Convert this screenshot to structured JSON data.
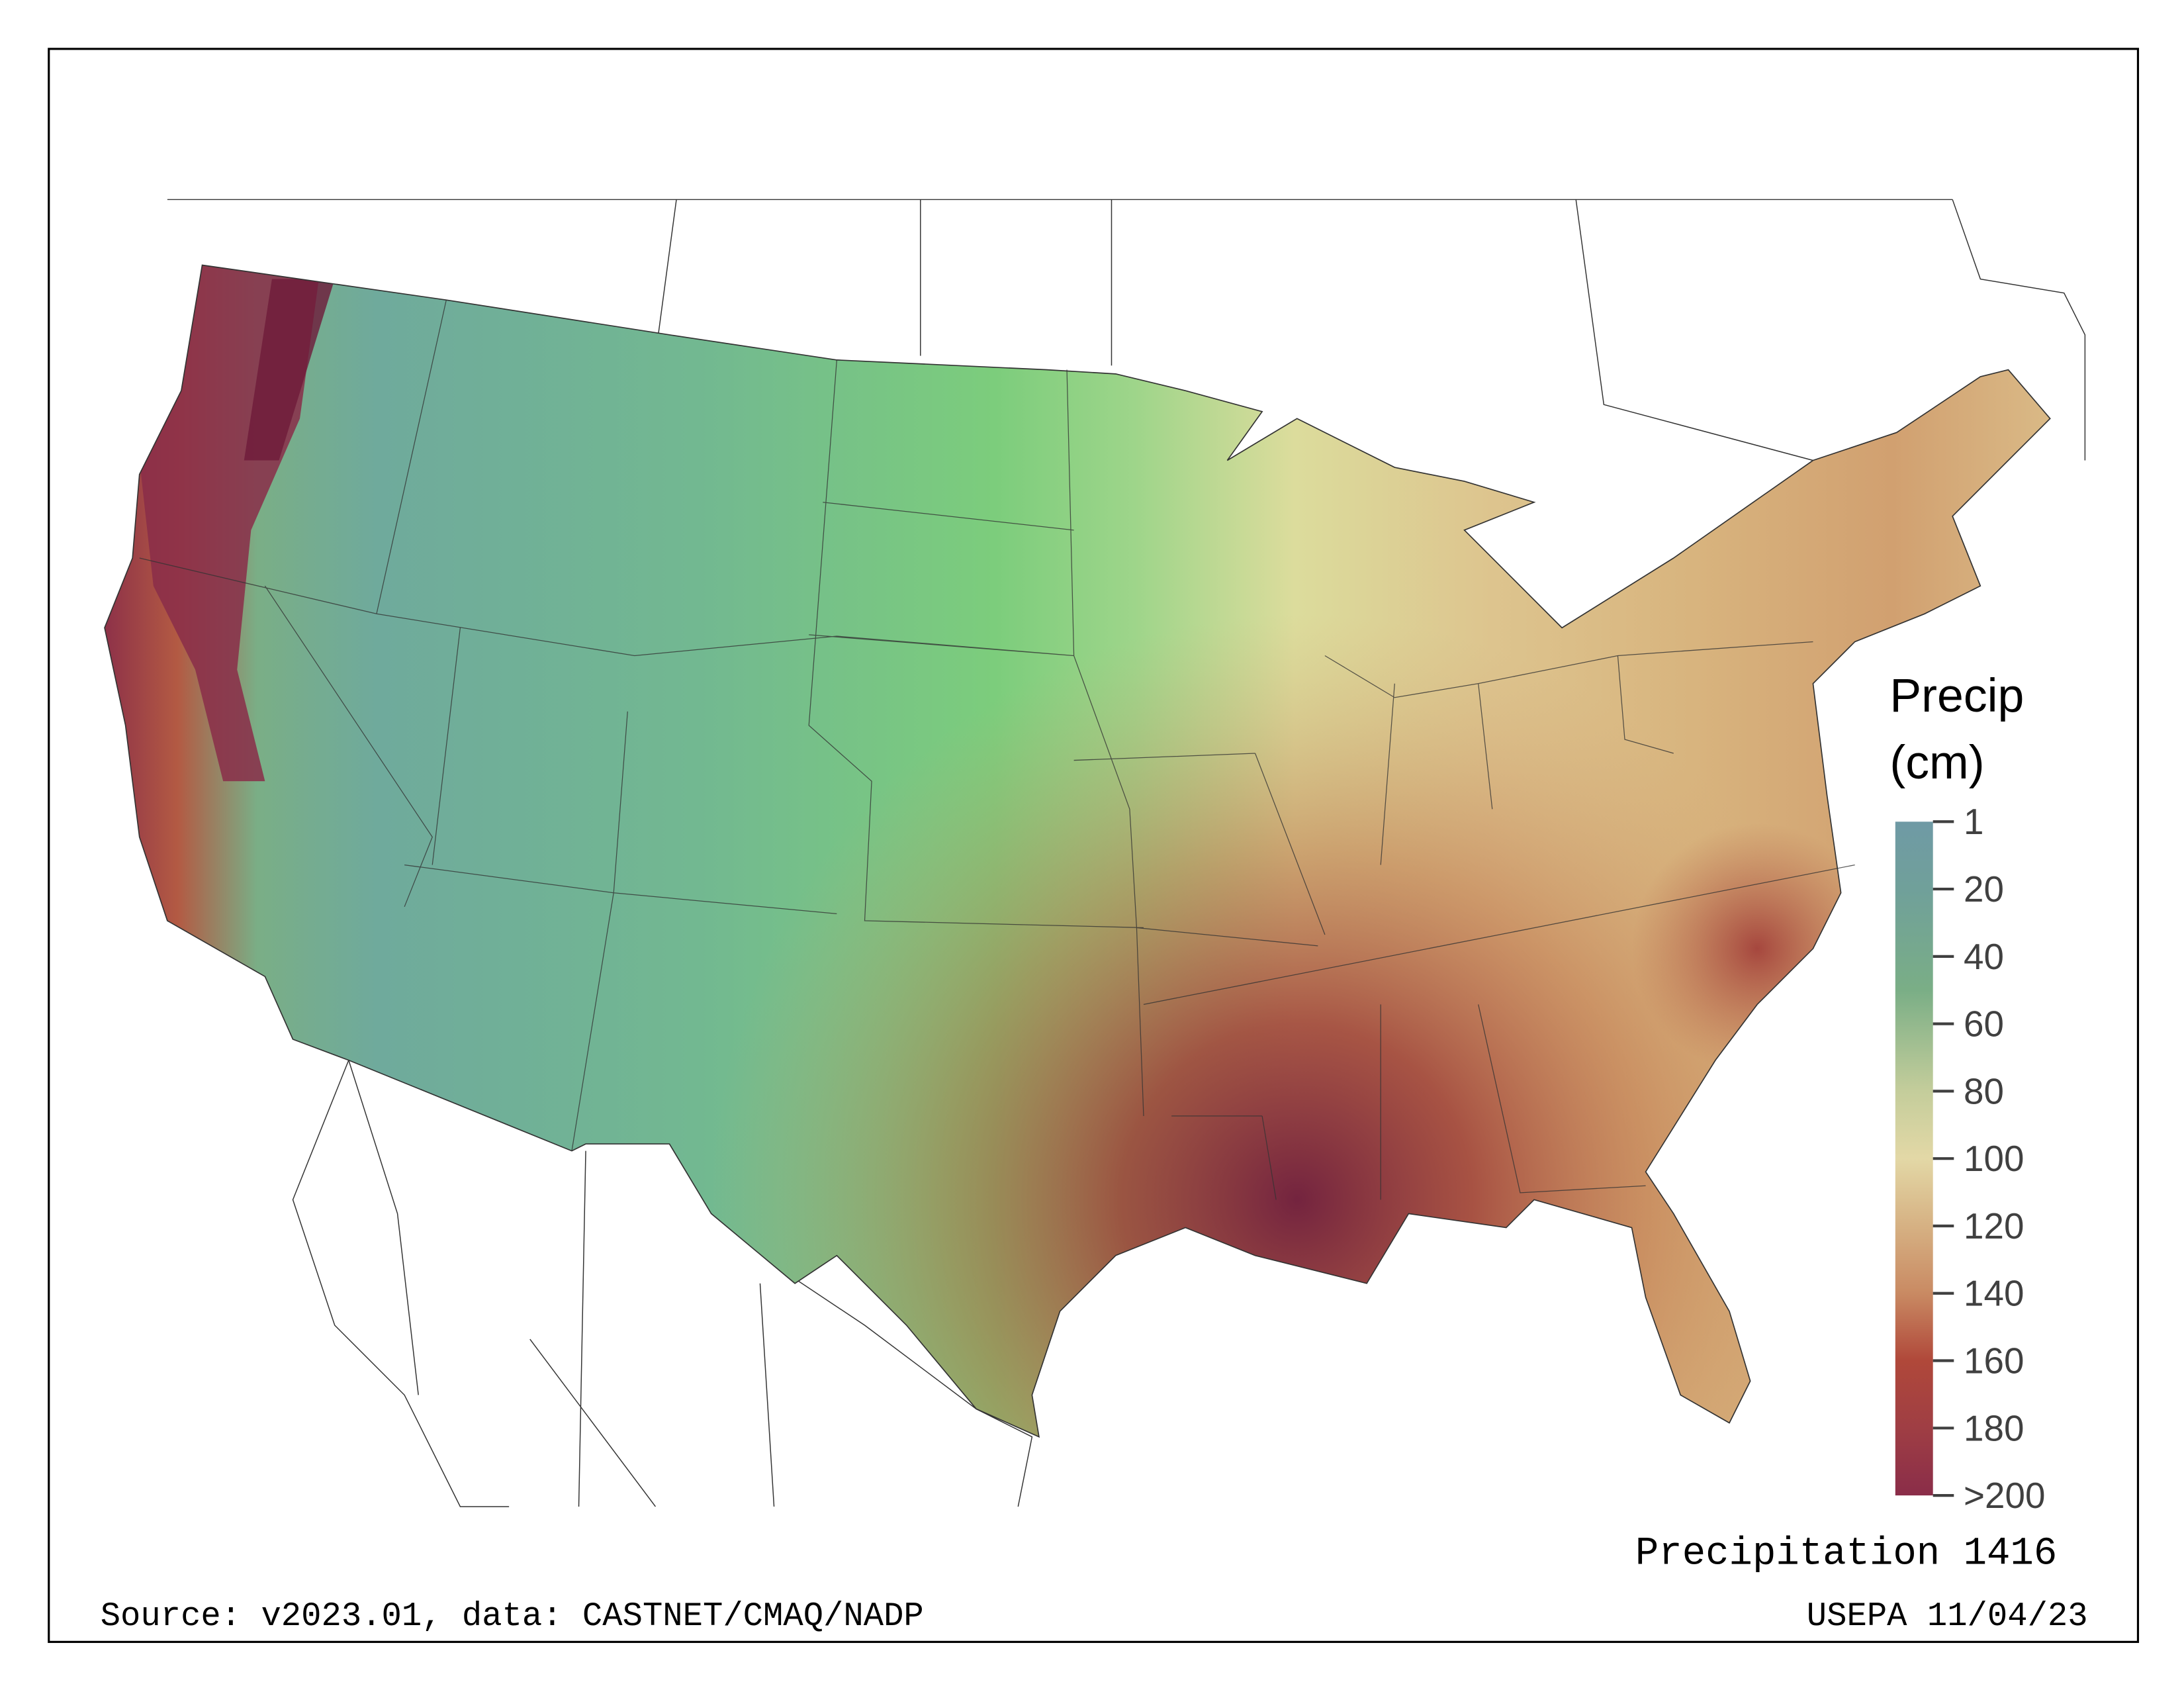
{
  "chart_data": {
    "type": "heatmap",
    "title": "Precipitation 1416",
    "subject": "Precipitation over the contiguous United States",
    "legend": {
      "title_line1": "Precip",
      "title_line2": "(cm)",
      "ticks": [
        "1",
        "20",
        "40",
        "60",
        "80",
        "100",
        "120",
        "140",
        "160",
        "180",
        ">200"
      ],
      "tick_values": [
        1,
        20,
        40,
        60,
        80,
        100,
        120,
        140,
        160,
        180,
        200
      ],
      "colors": [
        "#6f9aa5",
        "#70a09a",
        "#7aae86",
        "#a9c294",
        "#d2d3a0",
        "#e3d8a6",
        "#d6b183",
        "#c98a63",
        "#b35a43",
        "#9f3e44",
        "#8a2d49"
      ],
      "placement": "right"
    },
    "range": [
      1,
      200
    ],
    "units": "cm"
  },
  "footer": {
    "title": "Precipitation 1416",
    "source": "Source: v2023.01, data: CASTNET/CMAQ/NADP",
    "credit": "USEPA 11/04/23"
  }
}
